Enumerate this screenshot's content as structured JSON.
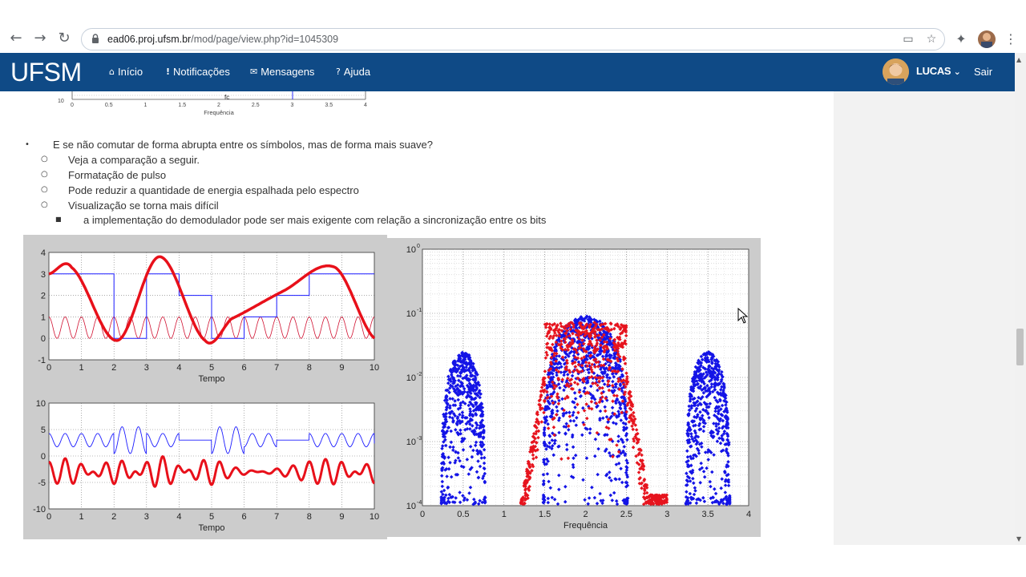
{
  "browser": {
    "url_domain": "ead06.proj.ufsm.br",
    "url_path": "/mod/page/view.php?id=1045309",
    "icons": [
      "back-icon",
      "forward-icon",
      "reload-icon",
      "lock-icon",
      "cast-icon",
      "star-icon",
      "extensions-icon",
      "profile-icon",
      "menu-icon"
    ]
  },
  "navbar": {
    "brand": "UFSM",
    "links": [
      {
        "icon": "home-icon",
        "glyph": "⌂",
        "label": "Início"
      },
      {
        "icon": "exclamation-icon",
        "glyph": "!",
        "label": "Notificações"
      },
      {
        "icon": "envelope-icon",
        "glyph": "✉",
        "label": "Mensagens"
      },
      {
        "icon": "question-icon",
        "glyph": "?",
        "label": "Ajuda"
      }
    ],
    "user": "LUCAS",
    "logout": "Sair"
  },
  "prev_figure": {
    "ticks": [
      "0",
      "0.5",
      "1",
      "1.5",
      "2",
      "2.5",
      "3",
      "3.5",
      "4"
    ],
    "ylabel_tick": "10",
    "xlabel": "Frequência",
    "marker": "fc"
  },
  "content": {
    "bullet": "E se não comutar de forma abrupta entre os símbolos, mas de forma mais suave?",
    "sub": [
      "Veja a comparação a seguir.",
      "Formatação de pulso",
      "Pode reduzir a quantidade de energia espalhada pelo espectro",
      "Visualização se torna mais difícil"
    ],
    "subsub": "a implementação do demodulador pode ser mais exigente com relação a sincronização entre os bits"
  },
  "chart_data": [
    {
      "type": "line",
      "xlabel": "Tempo",
      "xlim": [
        0,
        10
      ],
      "ylim": [
        -1,
        4
      ],
      "xticks": [
        "0",
        "1",
        "2",
        "3",
        "4",
        "5",
        "6",
        "7",
        "8",
        "9",
        "10"
      ],
      "yticks": [
        "-1",
        "0",
        "1",
        "2",
        "3",
        "4"
      ],
      "grid": true,
      "series": [
        {
          "style": "step",
          "color": "#1a1aff",
          "x": [
            0,
            1,
            2,
            3,
            4,
            5,
            6,
            7,
            8,
            9,
            10
          ],
          "values": [
            3,
            3,
            0,
            3,
            2,
            0,
            1,
            2,
            3,
            3,
            1.5
          ]
        },
        {
          "style": "smooth",
          "color": "#e8101a",
          "x": [
            0,
            0.7,
            2.1,
            3.4,
            4.8,
            5.6,
            7.2,
            8.8,
            10
          ],
          "values": [
            3,
            3.3,
            -0.1,
            3.8,
            -0.1,
            0.9,
            2.2,
            3.3,
            0
          ]
        },
        {
          "style": "carrier",
          "color": "#d01030",
          "x": [
            0,
            10
          ],
          "values": [
            0,
            1
          ]
        }
      ]
    },
    {
      "type": "line",
      "xlabel": "Tempo",
      "xlim": [
        0,
        10
      ],
      "ylim": [
        -10,
        10
      ],
      "xticks": [
        "0",
        "1",
        "2",
        "3",
        "4",
        "5",
        "6",
        "7",
        "8",
        "9",
        "10"
      ],
      "yticks": [
        "-10",
        "-5",
        "0",
        "5",
        "10"
      ],
      "grid": true,
      "series": [
        {
          "style": "modulated-step",
          "color": "#1a1aff",
          "offset": 3
        },
        {
          "style": "modulated-smooth",
          "color": "#e8101a",
          "offset": -3
        }
      ]
    },
    {
      "type": "scatter",
      "xlabel": "Frequência",
      "xlim": [
        0,
        4
      ],
      "ylim": [
        0.0001,
        1
      ],
      "yscale": "log",
      "xticks": [
        "0",
        "0.5",
        "1",
        "1.5",
        "2",
        "2.5",
        "3",
        "3.5",
        "4"
      ],
      "yticks": [
        "10^-4",
        "10^-3",
        "10^-2",
        "10^-1",
        "10^0"
      ],
      "grid": true,
      "series": [
        {
          "color": "#1414e6",
          "lobes": [
            {
              "center": 0.5,
              "peak": 0.025,
              "width": 0.5
            },
            {
              "center": 2.0,
              "peak": 0.09,
              "width": 1.0
            },
            {
              "center": 3.5,
              "peak": 0.025,
              "width": 0.5
            }
          ]
        },
        {
          "color": "#e6141e",
          "lobes": [
            {
              "center": 2.0,
              "peak": 0.09,
              "width": 1.0
            }
          ],
          "floor": 0.0001
        }
      ]
    }
  ]
}
